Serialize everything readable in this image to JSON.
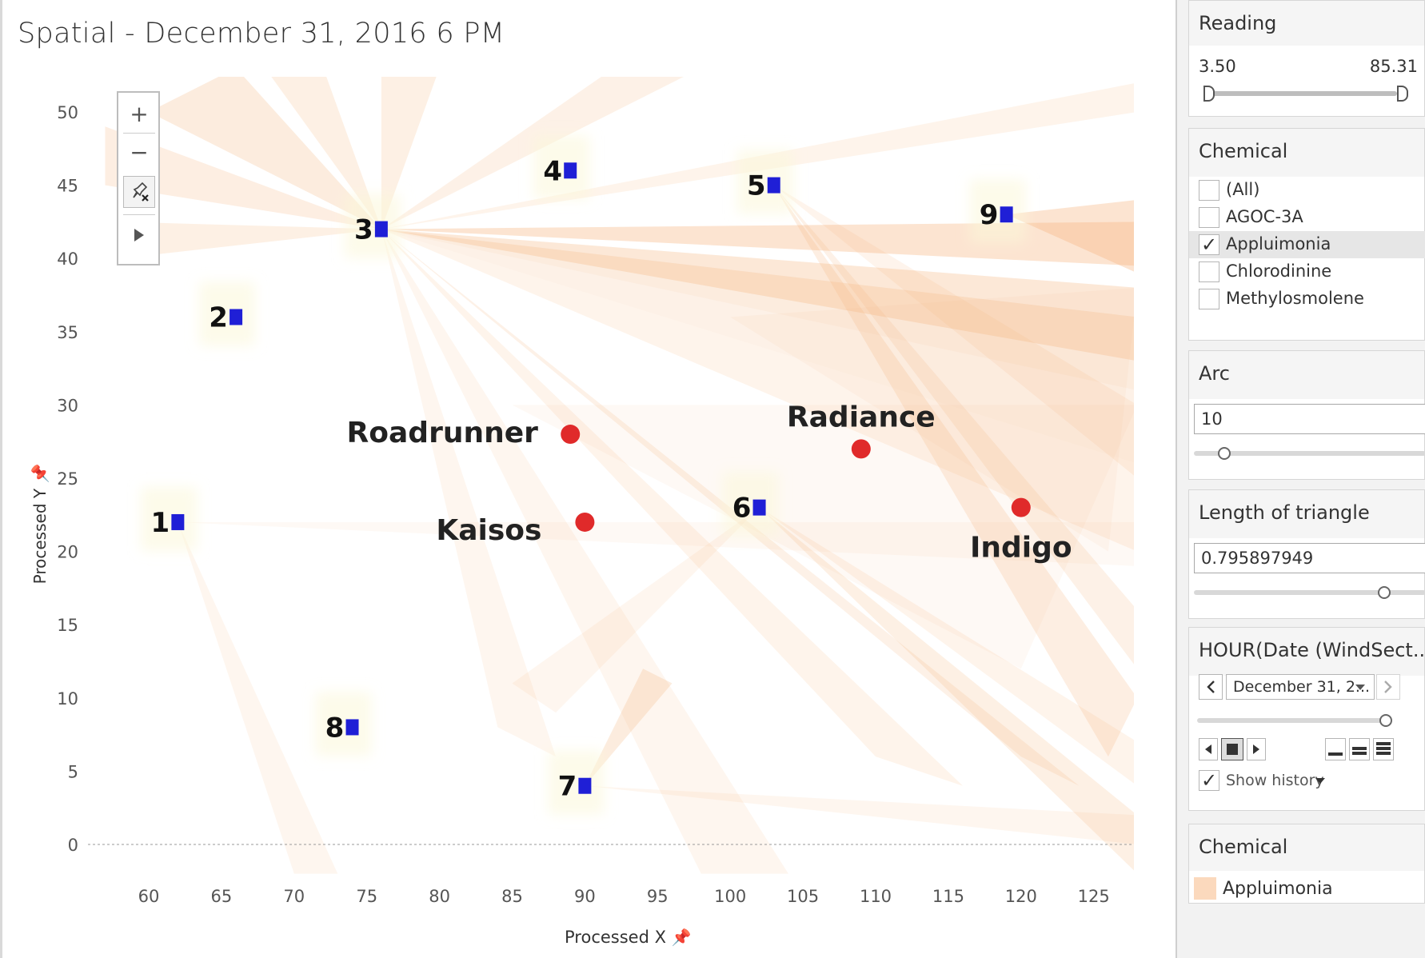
{
  "title": "Spatial - December 31, 2016 6 PM",
  "map_tools": {
    "zoom_in_label": "+",
    "zoom_out_label": "−"
  },
  "chart_data": {
    "type": "scatter",
    "xlabel": "Processed X",
    "ylabel": "Processed Y",
    "xlim": [
      57,
      128
    ],
    "ylim": [
      -2,
      53
    ],
    "xticks": [
      60,
      65,
      70,
      75,
      80,
      85,
      90,
      95,
      100,
      105,
      110,
      115,
      120,
      125
    ],
    "yticks": [
      0,
      5,
      10,
      15,
      20,
      25,
      30,
      35,
      40,
      45,
      50
    ],
    "sensors": [
      {
        "label": "1",
        "x": 62,
        "y": 22
      },
      {
        "label": "2",
        "x": 66,
        "y": 36
      },
      {
        "label": "3",
        "x": 76,
        "y": 42
      },
      {
        "label": "4",
        "x": 89,
        "y": 46
      },
      {
        "label": "5",
        "x": 103,
        "y": 45
      },
      {
        "label": "6",
        "x": 102,
        "y": 23
      },
      {
        "label": "7",
        "x": 90,
        "y": 4
      },
      {
        "label": "8",
        "x": 74,
        "y": 8
      },
      {
        "label": "9",
        "x": 119,
        "y": 43
      }
    ],
    "factories": [
      {
        "label": "Roadrunner",
        "x": 89,
        "y": 28
      },
      {
        "label": "Kaisos",
        "x": 90,
        "y": 22
      },
      {
        "label": "Radiance",
        "x": 109,
        "y": 27
      },
      {
        "label": "Indigo",
        "x": 120,
        "y": 23
      }
    ],
    "colors": {
      "sensor": "#1f1fd6",
      "factory": "#e02a2a",
      "plume": "#f5b27a"
    }
  },
  "filters": {
    "reading": {
      "title": "Reading",
      "min": "3.50",
      "max": "85.31"
    },
    "chemical": {
      "title": "Chemical",
      "options": [
        {
          "label": "(All)",
          "checked": false
        },
        {
          "label": "AGOC-3A",
          "checked": false
        },
        {
          "label": "Appluimonia",
          "checked": true
        },
        {
          "label": "Chlorodinine",
          "checked": false
        },
        {
          "label": "Methylosmolene",
          "checked": false
        }
      ]
    },
    "arc": {
      "title": "Arc",
      "value": "10",
      "slider_fraction": 0.13
    },
    "length": {
      "title": "Length of triangle",
      "value": "0.795897949",
      "slider_fraction": 0.82
    },
    "hour": {
      "title": "HOUR(Date (WindSect...",
      "selected": "December 31, 2...",
      "show_history": "Show history",
      "show_history_checked": true,
      "slider_fraction": 1.0
    },
    "legend": {
      "title": "Chemical",
      "item": "Appluimonia",
      "color": "#fbd9bd"
    }
  }
}
